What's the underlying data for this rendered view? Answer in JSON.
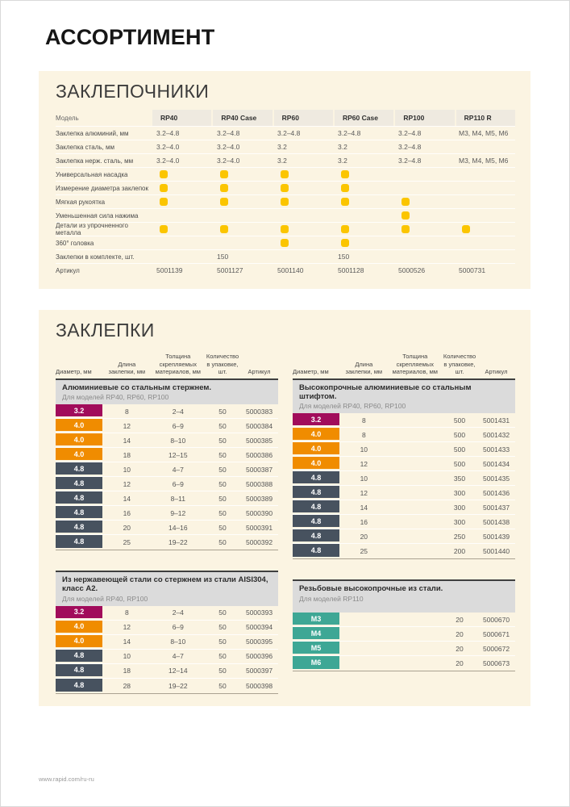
{
  "page": {
    "title": "АССОРТИМЕНТ",
    "footer_url": "www.rapid.com/ru-ru"
  },
  "colors": {
    "panel_bg": "#FBF4E2",
    "header_cell_bg": "#EFEAE0",
    "subtable_header_bg": "#DBDBDB",
    "mark_yellow": "#FBC500",
    "diameter_3_2": "#A10C5B",
    "diameter_4_0": "#F08C00",
    "diameter_4_8": "#47525F",
    "diameter_m": "#3EA795"
  },
  "riveters": {
    "section_title": "ЗАКЛЕПОЧНИКИ",
    "model_label": "Модель",
    "models": [
      "RP40",
      "RP40 Case",
      "RP60",
      "RP60 Case",
      "RP100",
      "RP110 R"
    ],
    "rows": [
      {
        "label": "Заклепка алюминий, мм",
        "type": "text",
        "values": [
          "3.2–4.8",
          "3.2–4.8",
          "3.2–4.8",
          "3.2–4.8",
          "3.2–4.8",
          "M3, M4, M5, M6"
        ]
      },
      {
        "label": "Заклепка сталь, мм",
        "type": "text",
        "values": [
          "3.2–4.0",
          "3.2–4.0",
          "3.2",
          "3.2",
          "3.2–4.8",
          ""
        ]
      },
      {
        "label": "Заклепка нерж. сталь, мм",
        "type": "text",
        "values": [
          "3.2–4.0",
          "3.2–4.0",
          "3.2",
          "3.2",
          "3.2–4.8",
          "M3, M4, M5, M6"
        ]
      },
      {
        "label": "Универсальная насадка",
        "type": "dot",
        "values": [
          1,
          1,
          1,
          1,
          0,
          0
        ]
      },
      {
        "label": "Измерение диаметра заклепок",
        "type": "dot",
        "values": [
          1,
          1,
          1,
          1,
          0,
          0
        ]
      },
      {
        "label": "Мягкая рукоятка",
        "type": "dot",
        "values": [
          1,
          1,
          1,
          1,
          1,
          0
        ]
      },
      {
        "label": "Уменьшенная сила нажима",
        "type": "dot",
        "values": [
          0,
          0,
          0,
          0,
          1,
          0
        ]
      },
      {
        "label": "Детали из упрочненного металла",
        "type": "dot",
        "values": [
          1,
          1,
          1,
          1,
          1,
          1
        ]
      },
      {
        "label": "360° головка",
        "type": "dot",
        "values": [
          0,
          0,
          1,
          1,
          0,
          0
        ]
      },
      {
        "label": "Заклепки в комплекте, шт.",
        "type": "text",
        "values": [
          "",
          "150",
          "",
          "150",
          "",
          ""
        ]
      },
      {
        "label": "Артикул",
        "type": "text",
        "values": [
          "5001139",
          "5001127",
          "5001140",
          "5001128",
          "5000526",
          "5000731"
        ]
      }
    ]
  },
  "rivets": {
    "section_title": "ЗАКЛЕПКИ",
    "column_headers": [
      "Диаметр, мм",
      "Длина\nзаклепки, мм",
      "Толщина\nскрепляемых\nматериалов, мм",
      "Количество\nв упаковке, шт.",
      "Артикул"
    ],
    "tables": [
      {
        "column": "left",
        "position": "top",
        "title": "Алюминиевые со стальным стержнем.",
        "subtitle": "Для моделей RP40, RP60, RP100",
        "rows": [
          [
            "3.2",
            "8",
            "2–4",
            "50",
            "5000383"
          ],
          [
            "4.0",
            "12",
            "6–9",
            "50",
            "5000384"
          ],
          [
            "4.0",
            "14",
            "8–10",
            "50",
            "5000385"
          ],
          [
            "4.0",
            "18",
            "12–15",
            "50",
            "5000386"
          ],
          [
            "4.8",
            "10",
            "4–7",
            "50",
            "5000387"
          ],
          [
            "4.8",
            "12",
            "6–9",
            "50",
            "5000388"
          ],
          [
            "4.8",
            "14",
            "8–11",
            "50",
            "5000389"
          ],
          [
            "4.8",
            "16",
            "9–12",
            "50",
            "5000390"
          ],
          [
            "4.8",
            "20",
            "14–16",
            "50",
            "5000391"
          ],
          [
            "4.8",
            "25",
            "19–22",
            "50",
            "5000392"
          ]
        ]
      },
      {
        "column": "right",
        "position": "top",
        "title": "Высокопрочные алюминиевые со стальным штифтом.",
        "subtitle": "Для моделей RP40, RP60, RP100",
        "rows": [
          [
            "3.2",
            "8",
            "",
            "500",
            "5001431"
          ],
          [
            "4.0",
            "8",
            "",
            "500",
            "5001432"
          ],
          [
            "4.0",
            "10",
            "",
            "500",
            "5001433"
          ],
          [
            "4.0",
            "12",
            "",
            "500",
            "5001434"
          ],
          [
            "4.8",
            "10",
            "",
            "350",
            "5001435"
          ],
          [
            "4.8",
            "12",
            "",
            "300",
            "5001436"
          ],
          [
            "4.8",
            "14",
            "",
            "300",
            "5001437"
          ],
          [
            "4.8",
            "16",
            "",
            "300",
            "5001438"
          ],
          [
            "4.8",
            "20",
            "",
            "250",
            "5001439"
          ],
          [
            "4.8",
            "25",
            "",
            "200",
            "5001440"
          ]
        ]
      },
      {
        "column": "left",
        "position": "bottom",
        "title": "Из нержавеющей стали со стержнем из стали AISI304, класс А2.",
        "subtitle": "Для моделей RP40, RP100",
        "rows": [
          [
            "3.2",
            "8",
            "2–4",
            "50",
            "5000393"
          ],
          [
            "4.0",
            "12",
            "6–9",
            "50",
            "5000394"
          ],
          [
            "4.0",
            "14",
            "8–10",
            "50",
            "5000395"
          ],
          [
            "4.8",
            "10",
            "4–7",
            "50",
            "5000396"
          ],
          [
            "4.8",
            "18",
            "12–14",
            "50",
            "5000397"
          ],
          [
            "4.8",
            "28",
            "19–22",
            "50",
            "5000398"
          ]
        ]
      },
      {
        "column": "right",
        "position": "bottom",
        "title": "Резьбовые высокопрочные из стали.",
        "subtitle": "Для моделей RP110",
        "rows": [
          [
            "M3",
            "",
            "",
            "20",
            "5000670"
          ],
          [
            "M4",
            "",
            "",
            "20",
            "5000671"
          ],
          [
            "M5",
            "",
            "",
            "20",
            "5000672"
          ],
          [
            "M6",
            "",
            "",
            "20",
            "5000673"
          ]
        ]
      }
    ]
  }
}
